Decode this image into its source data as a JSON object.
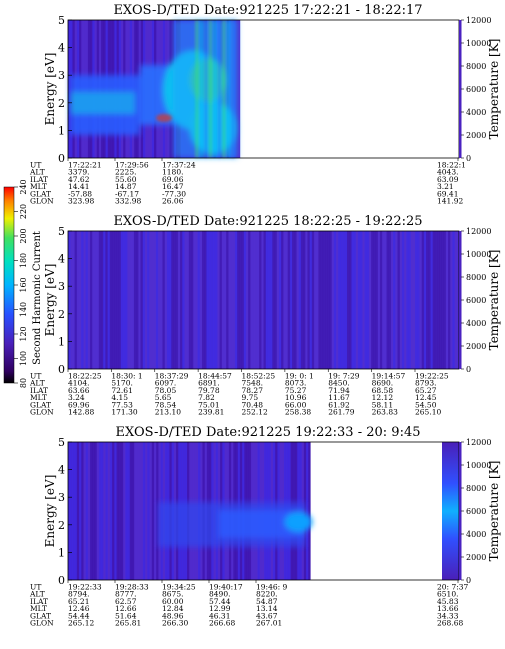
{
  "colorbar": {
    "label": "Second Harmonic Current",
    "ticks": [
      "80",
      "100",
      "120",
      "140",
      "160",
      "180",
      "200",
      "220",
      "240"
    ]
  },
  "chart_data": [
    {
      "type": "heatmap",
      "title": "EXOS-D/TED   Date:921225  17:22:21 - 18:22:17",
      "ylabel": "Energy [eV]",
      "ylabel_right": "Temperature [K]",
      "y_ticks": [
        "0",
        "1",
        "2",
        "3",
        "4",
        "5"
      ],
      "y_right_ticks": [
        "0",
        "2000",
        "4000",
        "6000",
        "8000",
        "10000",
        "12000"
      ],
      "ylim": [
        0,
        5
      ],
      "y_right_lim": [
        0,
        12000
      ],
      "data_fraction": [
        0,
        0.44
      ],
      "gap_after": true,
      "row_labels": [
        "UT",
        "ALT",
        "ILAT",
        "MLT",
        "GLAT",
        "GLON"
      ],
      "columns": [
        [
          "17:22:21",
          "3379.",
          "47.62",
          "14.41",
          "-57.88",
          "323.98"
        ],
        [
          "17:29:56",
          "2225.",
          "55.60",
          "14.87",
          "-67.17",
          "332.98"
        ],
        [
          "17:37:24",
          "1180.",
          "69.06",
          "16.47",
          "-77.30",
          "26.06"
        ]
      ],
      "end_column": [
        "18:22:1",
        "4043.",
        "63.09",
        "3.21",
        "69.41",
        "141.92"
      ]
    },
    {
      "type": "heatmap",
      "title": "EXOS-D/TED   Date:921225  18:22:25 - 19:22:25",
      "ylabel": "Energy [eV]",
      "ylabel_right": "Temperature [K]",
      "y_ticks": [
        "0",
        "1",
        "2",
        "3",
        "4",
        "5"
      ],
      "y_right_ticks": [
        "0",
        "2000",
        "4000",
        "6000",
        "8000",
        "10000",
        "12000"
      ],
      "ylim": [
        0,
        5
      ],
      "y_right_lim": [
        0,
        12000
      ],
      "data_fraction": [
        0,
        1
      ],
      "gap_after": false,
      "row_labels": [
        "UT",
        "ALT",
        "ILAT",
        "MLT",
        "GLAT",
        "GLON"
      ],
      "columns": [
        [
          "18:22:25",
          "4104.",
          "63.66",
          "3.24",
          "69.96",
          "142.88"
        ],
        [
          "18:30: 1",
          "5170.",
          "72.61",
          "4.15",
          "77.53",
          "171.30"
        ],
        [
          "18:37:29",
          "6097.",
          "78.05",
          "5.65",
          "78.54",
          "213.10"
        ],
        [
          "18:44:57",
          "6891.",
          "79.78",
          "7.82",
          "75.01",
          "239.81"
        ],
        [
          "18:52:25",
          "7548.",
          "78.27",
          "9.75",
          "70.48",
          "252.12"
        ],
        [
          "19: 0: 1",
          "8073.",
          "75.27",
          "10.96",
          "66.00",
          "258.38"
        ],
        [
          "19: 7:29",
          "8450.",
          "71.94",
          "11.67",
          "61.92",
          "261.79"
        ],
        [
          "19:14:57",
          "8690.",
          "68.58",
          "12.12",
          "58.11",
          "263.83"
        ],
        [
          "19:22:25",
          "8793.",
          "65.27",
          "12.45",
          "54.50",
          "265.10"
        ]
      ],
      "end_column": null
    },
    {
      "type": "heatmap",
      "title": "EXOS-D/TED   Date:921225  19:22:33 - 20: 9:45",
      "ylabel": "Energy [eV]",
      "ylabel_right": "Temperature [K]",
      "y_ticks": [
        "0",
        "1",
        "2",
        "3",
        "4",
        "5"
      ],
      "y_right_ticks": [
        "0",
        "2000",
        "4000",
        "6000",
        "8000",
        "10000",
        "12000"
      ],
      "ylim": [
        0,
        5
      ],
      "y_right_lim": [
        0,
        12000
      ],
      "data_fraction": [
        0,
        0.62
      ],
      "gap_after": true,
      "row_labels": [
        "UT",
        "ALT",
        "ILAT",
        "MLT",
        "GLAT",
        "GLON"
      ],
      "columns": [
        [
          "19:22:33",
          "8794.",
          "65.21",
          "12.46",
          "54.44",
          "265.12"
        ],
        [
          "19:28:33",
          "8777.",
          "62.57",
          "12.66",
          "51.64",
          "265.81"
        ],
        [
          "19:34:25",
          "8675.",
          "60.00",
          "12.84",
          "48.96",
          "266.30"
        ],
        [
          "19:40:17",
          "8490.",
          "57.44",
          "12.99",
          "46.31",
          "266.68"
        ],
        [
          "19:46: 9",
          "8220.",
          "54.87",
          "13.14",
          "43.67",
          "267.01"
        ]
      ],
      "end_column": [
        "20: 7:37",
        "6510.",
        "45.83",
        "13.66",
        "34.33",
        "268.68"
      ]
    }
  ]
}
